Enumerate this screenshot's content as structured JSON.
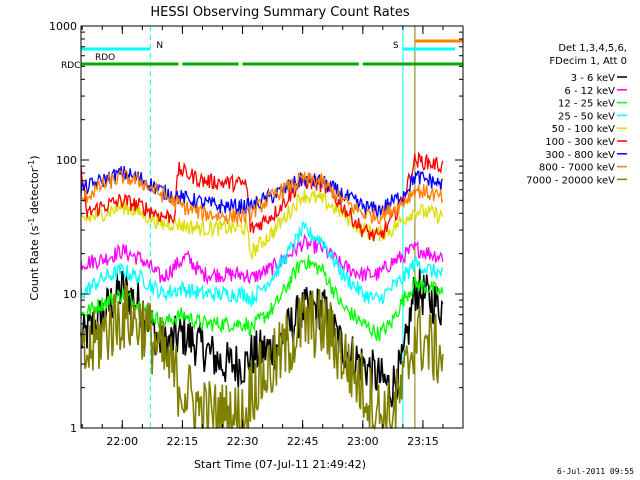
{
  "chart_data": {
    "type": "line",
    "title": "HESSI Observing Summary Count Rates",
    "xlabel": "Start Time (07-Jul-11 21:49:42)",
    "ylabel_main": "Count Rate (s",
    "ylabel_sup1": "-1",
    "ylabel_mid": " detector",
    "ylabel_sup2": "-1",
    "ylabel_end": ")",
    "y_scale": "log",
    "ylim": [
      1,
      1000
    ],
    "xlim": [
      "21:49:42",
      "23:25:00"
    ],
    "x_ticks": [
      "22:00",
      "22:15",
      "22:30",
      "22:45",
      "23:00",
      "23:15"
    ],
    "y_ticks": [
      "1",
      "10",
      "100",
      "1000"
    ],
    "grid": false,
    "legend_position": "right",
    "legend_header": [
      "Det 1,3,4,5,6,",
      "FDecim 1, Att 0"
    ],
    "series": [
      {
        "name": "3 - 6 keV",
        "color": "#000000",
        "points": [
          [
            "21:49:42",
            4.5
          ],
          [
            "21:55",
            7
          ],
          [
            "22:00",
            11
          ],
          [
            "22:05",
            8
          ],
          [
            "22:10",
            4
          ],
          [
            "22:15",
            5
          ],
          [
            "22:20",
            4
          ],
          [
            "22:25",
            3
          ],
          [
            "22:31",
            3
          ],
          [
            "22:32",
            3.5
          ],
          [
            "22:38",
            4
          ],
          [
            "22:45",
            7.5
          ],
          [
            "22:50",
            8
          ],
          [
            "22:55",
            4
          ],
          [
            "23:00",
            3
          ],
          [
            "23:03",
            2.5
          ],
          [
            "23:07",
            2
          ],
          [
            "23:10",
            3
          ],
          [
            "23:13",
            11
          ],
          [
            "23:17",
            9
          ],
          [
            "23:20",
            8
          ]
        ]
      },
      {
        "name": "6 - 12 keV",
        "color": "#ff00ff",
        "points": [
          [
            "21:49:42",
            17
          ],
          [
            "21:55",
            18
          ],
          [
            "22:00",
            21
          ],
          [
            "22:05",
            18
          ],
          [
            "22:10",
            13
          ],
          [
            "22:13",
            16
          ],
          [
            "22:16",
            19
          ],
          [
            "22:20",
            14
          ],
          [
            "22:25",
            14
          ],
          [
            "22:31",
            14
          ],
          [
            "22:32",
            13
          ],
          [
            "22:38",
            16
          ],
          [
            "22:45",
            24
          ],
          [
            "22:50",
            22
          ],
          [
            "22:55",
            16
          ],
          [
            "23:00",
            14
          ],
          [
            "23:04",
            14
          ],
          [
            "23:07",
            17
          ],
          [
            "23:10",
            19
          ],
          [
            "23:13",
            22
          ],
          [
            "23:17",
            20
          ],
          [
            "23:20",
            19
          ]
        ]
      },
      {
        "name": "12 - 25 keV",
        "color": "#00ff00",
        "points": [
          [
            "21:49:42",
            7
          ],
          [
            "21:55",
            8.5
          ],
          [
            "22:00",
            10
          ],
          [
            "22:05",
            8
          ],
          [
            "22:10",
            6
          ],
          [
            "22:15",
            7
          ],
          [
            "22:20",
            6
          ],
          [
            "22:25",
            6
          ],
          [
            "22:31",
            6
          ],
          [
            "22:32",
            5.5
          ],
          [
            "22:38",
            8
          ],
          [
            "22:45",
            18
          ],
          [
            "22:50",
            15
          ],
          [
            "22:55",
            8
          ],
          [
            "23:00",
            6
          ],
          [
            "23:04",
            5
          ],
          [
            "23:07",
            6
          ],
          [
            "23:10",
            9
          ],
          [
            "23:13",
            12
          ],
          [
            "23:17",
            11
          ],
          [
            "23:20",
            10
          ]
        ]
      },
      {
        "name": "25 - 50 keV",
        "color": "#00ffff",
        "points": [
          [
            "21:49:42",
            10
          ],
          [
            "21:55",
            13
          ],
          [
            "22:00",
            15
          ],
          [
            "22:05",
            13
          ],
          [
            "22:10",
            10
          ],
          [
            "22:15",
            11
          ],
          [
            "22:20",
            10
          ],
          [
            "22:25",
            10
          ],
          [
            "22:31",
            10
          ],
          [
            "22:32",
            9
          ],
          [
            "22:38",
            14
          ],
          [
            "22:45",
            30
          ],
          [
            "22:50",
            25
          ],
          [
            "22:55",
            14
          ],
          [
            "23:00",
            10
          ],
          [
            "23:04",
            9
          ],
          [
            "23:07",
            11
          ],
          [
            "23:10",
            13
          ],
          [
            "23:13",
            17
          ],
          [
            "23:17",
            15
          ],
          [
            "23:20",
            14
          ]
        ]
      },
      {
        "name": "50 - 100 keV",
        "color": "#dddd00",
        "points": [
          [
            "21:49:42",
            35
          ],
          [
            "21:55",
            40
          ],
          [
            "22:00",
            45
          ],
          [
            "22:05",
            40
          ],
          [
            "22:10",
            33
          ],
          [
            "22:13",
            34
          ],
          [
            "22:16",
            32
          ],
          [
            "22:20",
            31
          ],
          [
            "22:25",
            31
          ],
          [
            "22:31",
            31
          ],
          [
            "22:32",
            20
          ],
          [
            "22:38",
            30
          ],
          [
            "22:45",
            55
          ],
          [
            "22:50",
            50
          ],
          [
            "22:55",
            40
          ],
          [
            "23:00",
            30
          ],
          [
            "23:04",
            28
          ],
          [
            "23:07",
            30
          ],
          [
            "23:10",
            36
          ],
          [
            "23:13",
            42
          ],
          [
            "23:17",
            40
          ],
          [
            "23:20",
            38
          ]
        ]
      },
      {
        "name": "100 - 300 keV",
        "color": "#ff0000",
        "points": [
          [
            "21:49:42",
            90
          ],
          [
            "21:51",
            40
          ],
          [
            "21:55",
            45
          ],
          [
            "22:00",
            50
          ],
          [
            "22:05",
            45
          ],
          [
            "22:10",
            38
          ],
          [
            "22:13",
            38
          ],
          [
            "22:14",
            85
          ],
          [
            "22:20",
            70
          ],
          [
            "22:25",
            68
          ],
          [
            "22:31",
            66
          ],
          [
            "22:32",
            30
          ],
          [
            "22:38",
            40
          ],
          [
            "22:45",
            70
          ],
          [
            "22:50",
            65
          ],
          [
            "22:55",
            45
          ],
          [
            "23:00",
            30
          ],
          [
            "23:04",
            26
          ],
          [
            "23:07",
            35
          ],
          [
            "23:10",
            50
          ],
          [
            "23:13",
            100
          ],
          [
            "23:17",
            95
          ],
          [
            "23:20",
            90
          ]
        ]
      },
      {
        "name": "300 - 800 keV",
        "color": "#0000ff",
        "points": [
          [
            "21:49:42",
            60
          ],
          [
            "21:55",
            70
          ],
          [
            "22:00",
            80
          ],
          [
            "22:05",
            72
          ],
          [
            "22:10",
            58
          ],
          [
            "22:15",
            52
          ],
          [
            "22:20",
            48
          ],
          [
            "22:25",
            45
          ],
          [
            "22:31",
            45
          ],
          [
            "22:32",
            45
          ],
          [
            "22:38",
            55
          ],
          [
            "22:45",
            72
          ],
          [
            "22:50",
            68
          ],
          [
            "22:55",
            55
          ],
          [
            "23:00",
            45
          ],
          [
            "23:04",
            42
          ],
          [
            "23:07",
            48
          ],
          [
            "23:10",
            55
          ],
          [
            "23:13",
            75
          ],
          [
            "23:17",
            70
          ],
          [
            "23:20",
            65
          ]
        ]
      },
      {
        "name": "800 - 7000 keV",
        "color": "#ff8000",
        "points": [
          [
            "21:49:42",
            50
          ],
          [
            "21:55",
            65
          ],
          [
            "22:00",
            75
          ],
          [
            "22:05",
            68
          ],
          [
            "22:10",
            55
          ],
          [
            "22:15",
            45
          ],
          [
            "22:20",
            40
          ],
          [
            "22:25",
            38
          ],
          [
            "22:31",
            38
          ],
          [
            "22:32",
            40
          ],
          [
            "22:38",
            55
          ],
          [
            "22:45",
            72
          ],
          [
            "22:50",
            68
          ],
          [
            "22:55",
            50
          ],
          [
            "23:00",
            40
          ],
          [
            "23:04",
            38
          ],
          [
            "23:07",
            42
          ],
          [
            "23:10",
            48
          ],
          [
            "23:13",
            60
          ],
          [
            "23:17",
            56
          ],
          [
            "23:20",
            52
          ]
        ]
      },
      {
        "name": "7000 - 20000 keV",
        "color": "#808000",
        "points": [
          [
            "21:49:42",
            3
          ],
          [
            "21:55",
            5
          ],
          [
            "22:00",
            7
          ],
          [
            "22:05",
            6
          ],
          [
            "22:10",
            3.5
          ],
          [
            "22:15",
            2
          ],
          [
            "22:20",
            1.3
          ],
          [
            "22:25",
            1.2
          ],
          [
            "22:31",
            1.2
          ],
          [
            "22:32",
            2
          ],
          [
            "22:38",
            3
          ],
          [
            "22:45",
            6
          ],
          [
            "22:50",
            6
          ],
          [
            "22:55",
            3.5
          ],
          [
            "23:00",
            2
          ],
          [
            "23:04",
            1.3
          ],
          [
            "23:07",
            1.2
          ],
          [
            "23:10",
            2
          ],
          [
            "23:13",
            5
          ],
          [
            "23:17",
            4
          ],
          [
            "23:20",
            3.5
          ]
        ]
      }
    ],
    "flag_bars": [
      {
        "label": "RDO",
        "level": 2,
        "color": "#00ffff",
        "segments": [
          [
            "21:49:42",
            "22:07"
          ],
          [
            "23:10",
            "23:23"
          ]
        ]
      },
      {
        "label": "RDC",
        "level": 1,
        "color": "#00aa00",
        "segments": [
          [
            "21:49:42",
            "22:14"
          ],
          [
            "22:15",
            "22:29"
          ],
          [
            "22:30",
            "22:59"
          ],
          [
            "23:00",
            "23:25"
          ]
        ]
      },
      {
        "label": "S",
        "level": 3,
        "color": "#ff8000",
        "segments": [
          [
            "23:13",
            "23:25"
          ]
        ]
      }
    ],
    "flag_bar_labels": {
      "upper": "RDO",
      "lower": "RDC"
    },
    "flag_markers": [
      {
        "label": "N",
        "time": "22:07",
        "color": "#00ffff"
      },
      {
        "label": "S",
        "time": "23:10",
        "color": "#ff8000"
      }
    ],
    "vlines": [
      {
        "time": "21:49:42",
        "color": "#00ffff",
        "style": "solid"
      },
      {
        "time": "22:07",
        "color": "#00ffff",
        "style": "dashed"
      },
      {
        "time": "23:10",
        "color": "#00ffff",
        "style": "solid"
      },
      {
        "time": "23:13",
        "color": "#808000",
        "style": "solid"
      },
      {
        "time": "23:25",
        "color": "#00ffff",
        "style": "dashed"
      }
    ]
  },
  "timestamp": "6-Jul-2011 09:55"
}
